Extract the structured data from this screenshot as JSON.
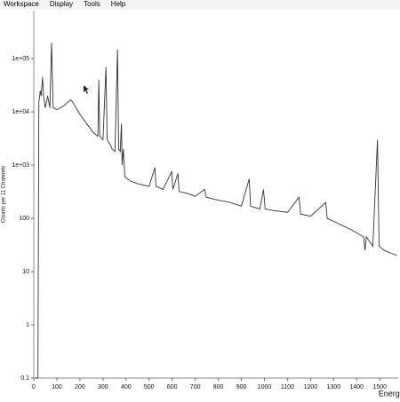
{
  "menu": [
    "Workspace",
    "Display",
    "Tools",
    "Help"
  ],
  "chart_data": {
    "type": "line",
    "xlabel": "Energy",
    "ylabel": "Counts per 11 Channels",
    "x": [
      5,
      18,
      22,
      28,
      32,
      38,
      42,
      50,
      60,
      70,
      77,
      84,
      100,
      130,
      160,
      170,
      200,
      230,
      260,
      278,
      282,
      286,
      300,
      313,
      318,
      330,
      340,
      352,
      363,
      368,
      375,
      380,
      383,
      388,
      395,
      420,
      450,
      500,
      525,
      530,
      560,
      598,
      603,
      625,
      630,
      660,
      700,
      740,
      748,
      800,
      850,
      900,
      934,
      940,
      980,
      996,
      1003,
      1040,
      1100,
      1150,
      1157,
      1200,
      1266,
      1272,
      1320,
      1380,
      1430,
      1436,
      1442,
      1470,
      1490,
      1497,
      1520,
      1550,
      1575
    ],
    "series": [
      {
        "color": "#333333",
        "values": [
          0.1,
          0.1,
          15000,
          25000,
          20000,
          45000,
          20000,
          12000,
          20000,
          12000,
          200000,
          12000,
          11000,
          13000,
          17000,
          15000,
          9000,
          6000,
          4000,
          3500,
          40000,
          3500,
          3000,
          70000,
          3000,
          2500,
          2000,
          1800,
          150000,
          2000,
          1800,
          6000,
          1000,
          2000,
          600,
          500,
          450,
          400,
          900,
          400,
          350,
          750,
          350,
          700,
          320,
          300,
          260,
          350,
          250,
          220,
          200,
          170,
          550,
          170,
          150,
          350,
          150,
          140,
          130,
          250,
          120,
          110,
          200,
          100,
          80,
          60,
          45,
          25,
          45,
          30,
          3000,
          30,
          25,
          22,
          20
        ]
      }
    ],
    "xlim": [
      0,
      1580
    ],
    "ylim": [
      0.1,
      800000
    ],
    "log_y": true,
    "xticks": [
      0,
      100,
      200,
      300,
      400,
      500,
      600,
      700,
      800,
      900,
      1000,
      1100,
      1200,
      1300,
      1400,
      1500
    ],
    "yticks": [
      {
        "value": 100000,
        "label": "1e+05"
      },
      {
        "value": 10000,
        "label": "1e+04"
      },
      {
        "value": 1000,
        "label": "1e+03"
      },
      100,
      10,
      1,
      0.1
    ]
  }
}
